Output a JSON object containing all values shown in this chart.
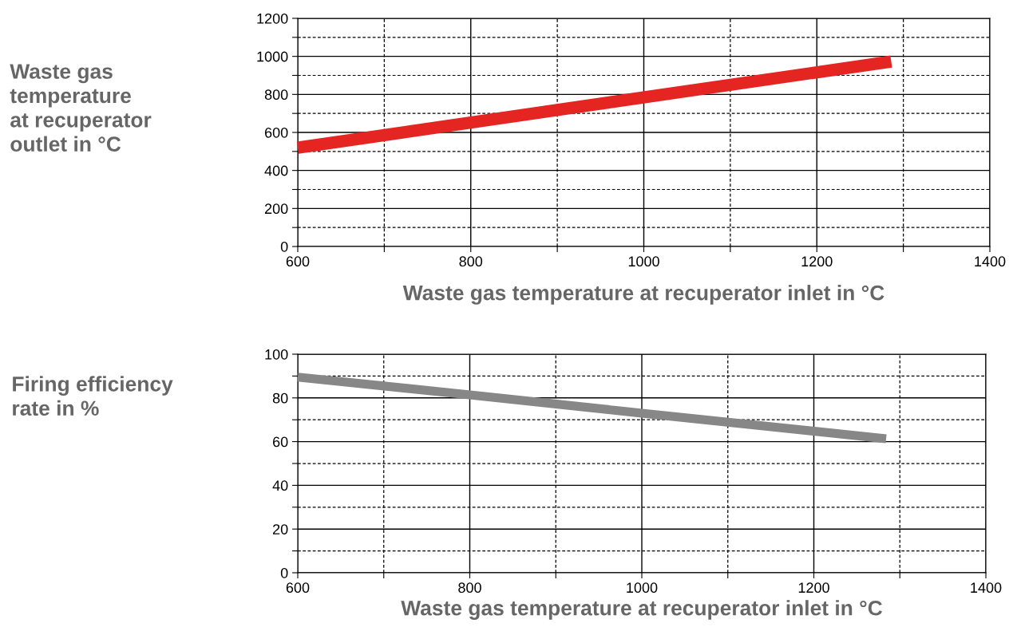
{
  "chart_data": [
    {
      "type": "line",
      "xlabel": "Waste gas temperature at recuperator inlet in °C",
      "ylabel": "Waste gas\ntemperature\nat recuperator\noutlet in °C",
      "x": [
        600,
        1286
      ],
      "series": [
        {
          "color": "#e52521",
          "values": [
            520,
            973
          ]
        }
      ],
      "xlim": [
        600,
        1400
      ],
      "xticks": [
        600,
        {
          "value": 700,
          "label": null
        },
        800,
        {
          "value": 900,
          "label": null
        },
        1000,
        {
          "value": 1100,
          "label": null
        },
        1200,
        {
          "value": 1300,
          "label": null
        },
        1400
      ],
      "ylim": [
        0,
        1200
      ],
      "yticks": [
        0,
        {
          "value": 100,
          "label": null
        },
        200,
        {
          "value": 300,
          "label": null
        },
        400,
        {
          "value": 500,
          "label": null
        },
        600,
        {
          "value": 700,
          "label": null
        },
        800,
        {
          "value": 900,
          "label": null
        },
        1000,
        {
          "value": 1100,
          "label": null
        },
        1200
      ],
      "grid": true,
      "legend": false,
      "marker": "none",
      "line_style": "solid"
    },
    {
      "type": "line",
      "xlabel": "Waste gas temperature at recuperator inlet in °C",
      "ylabel": "Firing efficiency\nrate in %",
      "x": [
        600,
        800,
        1000,
        1284
      ],
      "series": [
        {
          "color": "#878787",
          "values": [
            89.5,
            81.4,
            73,
            61.3
          ]
        }
      ],
      "xlim": [
        600,
        1400
      ],
      "xticks": [
        600,
        {
          "value": 700,
          "label": null
        },
        800,
        {
          "value": 900,
          "label": null
        },
        1000,
        {
          "value": 1100,
          "label": null
        },
        1200,
        {
          "value": 1300,
          "label": null
        },
        1400
      ],
      "ylim": [
        0,
        100
      ],
      "yticks": [
        0,
        {
          "value": 10,
          "label": null
        },
        20,
        {
          "value": 30,
          "label": null
        },
        40,
        {
          "value": 50,
          "label": null
        },
        60,
        {
          "value": 70,
          "label": null
        },
        80,
        {
          "value": 90,
          "label": null
        },
        100
      ],
      "grid": true,
      "legend": false,
      "marker": "none",
      "line_style": "solid"
    }
  ]
}
